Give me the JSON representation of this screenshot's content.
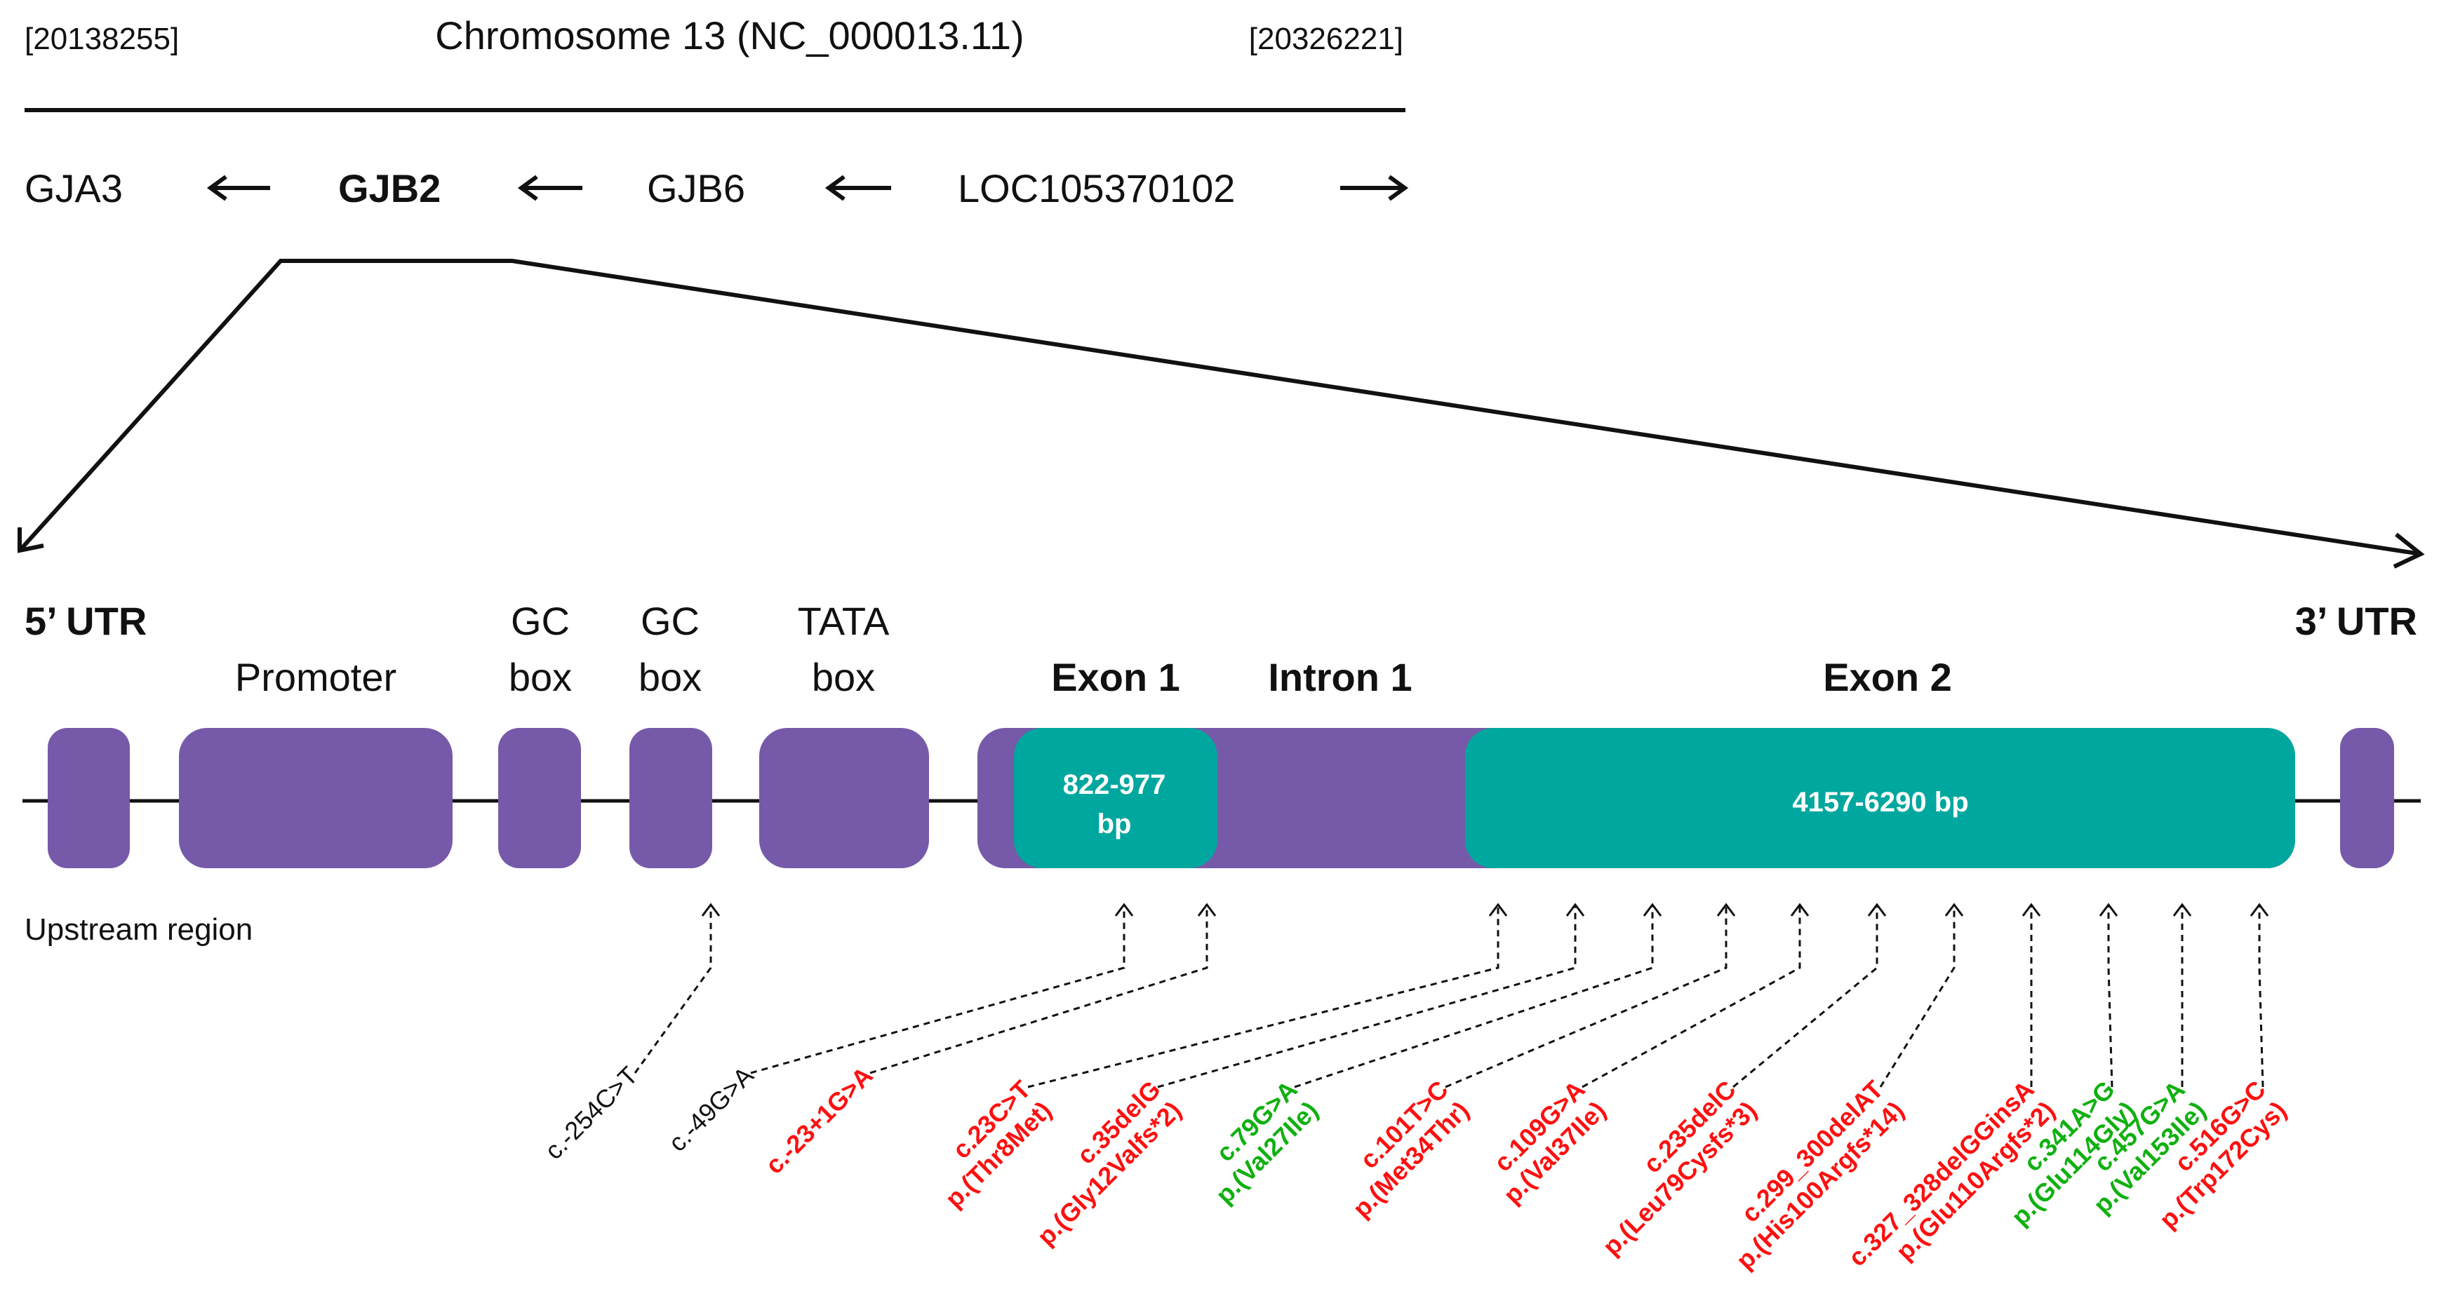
{
  "colors": {
    "region": "#7659a8",
    "exon": "#00a79f",
    "pathogenic": "#ff1010",
    "benign": "#10b010",
    "neutral": "#111111"
  },
  "chromosome": {
    "title": "Chromosome 13 (NC_000013.11)",
    "start_coord": "[20138255]",
    "end_coord": "[20326221]"
  },
  "genes": [
    {
      "name": "GJA3",
      "direction": "left",
      "bold": false
    },
    {
      "name": "GJB2",
      "direction": "left",
      "bold": true
    },
    {
      "name": "GJB6",
      "direction": "left",
      "bold": false
    },
    {
      "name": "LOC105370102",
      "direction": "right",
      "bold": false
    }
  ],
  "structure_labels": {
    "utr5": "5’ UTR",
    "utr3": "3’ UTR",
    "promoter": "Promoter",
    "gc_box_1": [
      "GC",
      "box"
    ],
    "gc_box_2": [
      "GC",
      "box"
    ],
    "tata_box": [
      "TATA",
      "box"
    ],
    "exon1": "Exon 1",
    "intron1": "Intron 1",
    "exon2": "Exon 2",
    "upstream": "Upstream region"
  },
  "exon1_size": [
    "822-977",
    "bp"
  ],
  "exon2_size": "4157-6290 bp",
  "variants": [
    {
      "lines": [
        "c.-254C>T"
      ],
      "class": "neutral"
    },
    {
      "lines": [
        "c.-49G>A"
      ],
      "class": "neutral"
    },
    {
      "lines": [
        "c.-23+1G>A"
      ],
      "class": "pathogenic"
    },
    {
      "lines": [
        "c.23C>T",
        "p.(Thr8Met)"
      ],
      "class": "pathogenic"
    },
    {
      "lines": [
        "c.35delG",
        "p.(Gly12Valfs*2)"
      ],
      "class": "pathogenic"
    },
    {
      "lines": [
        "c.79G>A",
        "p.(Val27Ile)"
      ],
      "class": "benign"
    },
    {
      "lines": [
        "c.101T>C",
        "p.(Met34Thr)"
      ],
      "class": "pathogenic"
    },
    {
      "lines": [
        "c.109G>A",
        "p.(Val37Ile)"
      ],
      "class": "pathogenic"
    },
    {
      "lines": [
        "c.235delC",
        "p.(Leu79Cysfs*3)"
      ],
      "class": "pathogenic"
    },
    {
      "lines": [
        "c.299_300delAT",
        "p.(His100Argfs*14)"
      ],
      "class": "pathogenic"
    },
    {
      "lines": [
        "c.327_328delGGinsA",
        "p.(Glu110Argfs*2)"
      ],
      "class": "pathogenic"
    },
    {
      "lines": [
        "c.341A>G",
        "p.(Glu114Gly)"
      ],
      "class": "benign"
    },
    {
      "lines": [
        "c.457G>A",
        "p.(Val153Ile)"
      ],
      "class": "benign"
    },
    {
      "lines": [
        "c.516G>C",
        "p.(Trp172Cys)"
      ],
      "class": "pathogenic"
    }
  ]
}
